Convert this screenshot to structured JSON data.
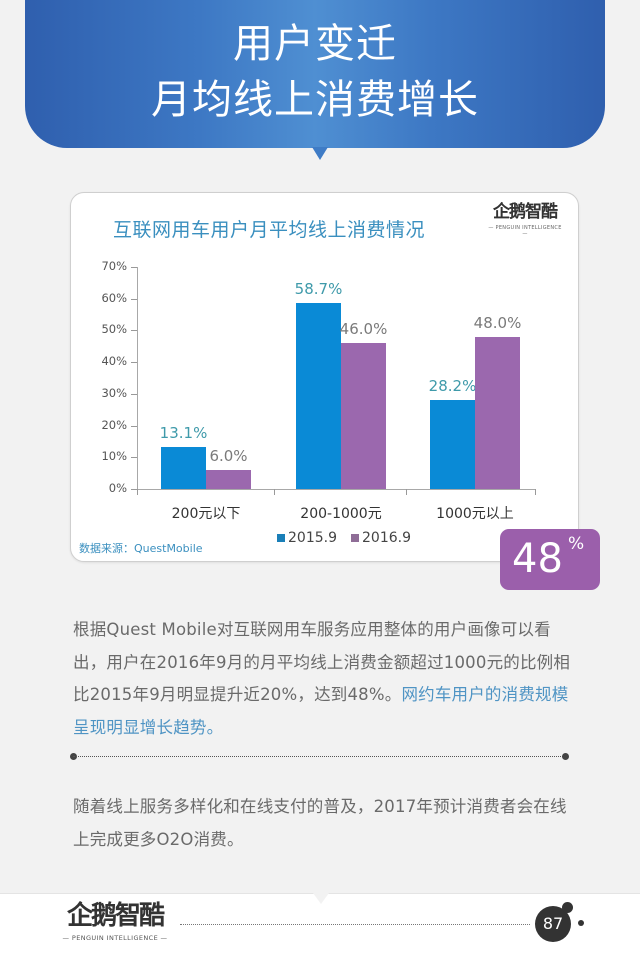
{
  "header": {
    "line1": "用户变迁",
    "line2": "月均线上消费增长",
    "color": "#3d78c4"
  },
  "card": {
    "brand_cn": "企鹅智酷",
    "brand_en": "— PENGUIN INTELLIGENCE —",
    "source": "数据来源：QuestMobile"
  },
  "chart_data": {
    "type": "bar",
    "title": "互联网用车用户月平均线上消费情况",
    "categories": [
      "200元以下",
      "200-1000元",
      "1000元以上"
    ],
    "series": [
      {
        "name": "2015.9",
        "values": [
          13.1,
          58.7,
          28.2
        ],
        "labels": [
          "13.1%",
          "58.7%",
          "28.2%"
        ],
        "color": "#0a8ad6"
      },
      {
        "name": "2016.9",
        "values": [
          6.0,
          46.0,
          48.0
        ],
        "labels": [
          "6.0%",
          "46.0%",
          "48.0%"
        ],
        "color": "#9b68ae"
      }
    ],
    "yticks": [
      "0%",
      "10%",
      "20%",
      "30%",
      "40%",
      "50%",
      "60%",
      "70%"
    ],
    "ylim": [
      0,
      70
    ],
    "xlabel": "",
    "ylabel": "",
    "grid": false,
    "legend_position": "bottom"
  },
  "badge": {
    "value": "48",
    "unit": "%",
    "color": "#9b5fab"
  },
  "paragraph1": {
    "text": "根据Quest Mobile对互联网用车服务应用整体的用户画像可以看出，用户在2016年9月的月平均线上消费金额超过1000元的比例相比2015年9月明显提升近20%，达到48%。",
    "highlight": "网约车用户的消费规模呈现明显增长趋势。"
  },
  "paragraph2": {
    "text": "随着线上服务多样化和在线支付的普及，2017年预计消费者会在线上完成更多O2O消费。"
  },
  "footer": {
    "brand_cn": "企鹅智酷",
    "brand_en": "— PENGUIN INTELLIGENCE —",
    "page_number": "87"
  }
}
